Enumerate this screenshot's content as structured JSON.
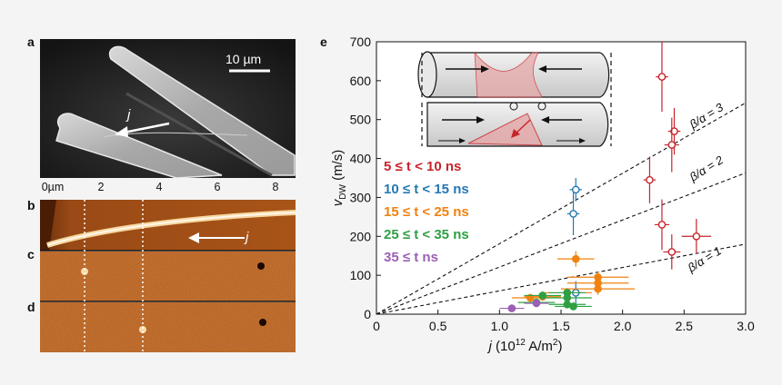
{
  "panels": {
    "a": "a",
    "b": "b",
    "c": "c",
    "d": "d",
    "e": "e"
  },
  "sem": {
    "scale_label": "10 µm",
    "current_label": "j"
  },
  "afm": {
    "axis_ticks": [
      "0µm",
      "2",
      "4",
      "6",
      "8"
    ],
    "current_label": "j"
  },
  "chart_data": {
    "type": "scatter",
    "xlabel": "j (10^12 A/m^2)",
    "ylabel": "v_DW (m/s)",
    "xlim": [
      0,
      3.0
    ],
    "ylim": [
      0,
      700
    ],
    "xticks": [
      "0",
      "0.5",
      "1.0",
      "1.5",
      "2.0",
      "2.5",
      "3.0"
    ],
    "yticks": [
      "0",
      "100",
      "200",
      "300",
      "400",
      "500",
      "600",
      "700"
    ],
    "legend_placement": "left",
    "series": [
      {
        "name": "5 ≤ t < 10 ns",
        "color": "#c8242b",
        "fill": "open",
        "points": [
          [
            2.32,
            610,
            0.05,
            90
          ],
          [
            2.42,
            470,
            0.05,
            60
          ],
          [
            2.4,
            435,
            0.06,
            70
          ],
          [
            2.22,
            345,
            0.05,
            60
          ],
          [
            2.32,
            230,
            0.06,
            65
          ],
          [
            2.4,
            160,
            0.07,
            45
          ],
          [
            2.6,
            200,
            0.12,
            45
          ]
        ]
      },
      {
        "name": "10 ≤ t < 15 ns",
        "color": "#2478b4",
        "fill": "open",
        "points": [
          [
            1.62,
            320,
            0.05,
            30
          ],
          [
            1.6,
            258,
            0.05,
            55
          ],
          [
            1.62,
            55,
            0.06,
            30
          ]
        ]
      },
      {
        "name": "15 ≤ t < 25 ns",
        "color": "#f0820f",
        "fill": "filled",
        "points": [
          [
            1.62,
            142,
            0.15,
            20
          ],
          [
            1.8,
            95,
            0.25,
            15
          ],
          [
            1.8,
            80,
            0.25,
            15
          ],
          [
            1.8,
            65,
            0.3,
            15
          ],
          [
            1.55,
            55,
            0.2,
            12
          ],
          [
            1.35,
            45,
            0.15,
            10
          ],
          [
            1.25,
            42,
            0.15,
            10
          ]
        ]
      },
      {
        "name": "25 ≤ t < 35 ns",
        "color": "#2ea043",
        "fill": "filled",
        "points": [
          [
            1.55,
            55,
            0.15,
            10
          ],
          [
            1.35,
            48,
            0.15,
            10
          ],
          [
            1.55,
            42,
            0.2,
            10
          ],
          [
            1.3,
            30,
            0.15,
            10
          ],
          [
            1.55,
            25,
            0.15,
            10
          ],
          [
            1.6,
            20,
            0.15,
            10
          ]
        ]
      },
      {
        "name": "35 ≤ t ns",
        "color": "#9b5fb5",
        "fill": "filled",
        "points": [
          [
            1.1,
            15,
            0.1,
            8
          ],
          [
            1.3,
            28,
            0.1,
            8
          ]
        ]
      }
    ],
    "reference_lines": [
      {
        "label": "β/α = 3",
        "slope": 181
      },
      {
        "label": "β/α = 2",
        "slope": 121
      },
      {
        "label": "β/α = 1",
        "slope": 60
      }
    ]
  }
}
